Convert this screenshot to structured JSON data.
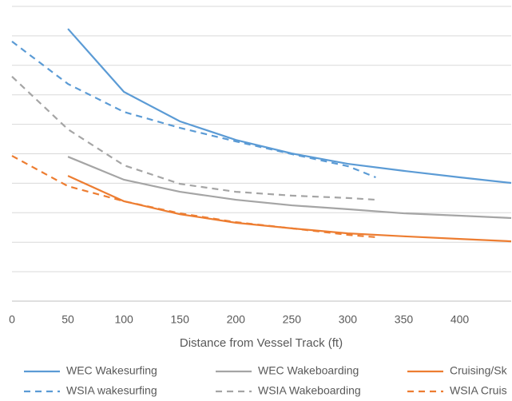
{
  "chart_data": {
    "type": "line",
    "x_label": "Distance from Vessel Track (ft)",
    "xlim": [
      0,
      446
    ],
    "xticks": [
      0,
      50,
      100,
      150,
      200,
      250,
      300,
      350,
      400
    ],
    "ylim": [
      0,
      10
    ],
    "yticks": [
      1,
      2,
      3,
      4,
      5,
      6,
      7,
      8,
      9,
      10
    ],
    "grid": true,
    "series": [
      {
        "name": "WEC Wakesurfing",
        "color": "#5b9bd5",
        "dashed": false,
        "x": [
          50,
          100,
          150,
          200,
          250,
          300,
          350,
          400,
          446
        ],
        "values": [
          9.24,
          7.1,
          6.1,
          5.47,
          5.01,
          4.66,
          4.42,
          4.2,
          4.01
        ]
      },
      {
        "name": "WEC Wakeboarding",
        "color": "#a5a5a5",
        "dashed": false,
        "x": [
          50,
          100,
          150,
          200,
          250,
          300,
          350,
          400,
          446
        ],
        "values": [
          4.9,
          4.12,
          3.71,
          3.44,
          3.25,
          3.12,
          2.98,
          2.9,
          2.82
        ]
      },
      {
        "name": "Cruising/Sk",
        "color": "#ed7d31",
        "dashed": false,
        "x": [
          50,
          100,
          150,
          200,
          250,
          300,
          350,
          400,
          446
        ],
        "values": [
          4.25,
          3.39,
          2.95,
          2.66,
          2.47,
          2.3,
          2.2,
          2.11,
          2.03
        ]
      },
      {
        "name": "WSIA wakesurfing",
        "color": "#5b9bd5",
        "dashed": true,
        "x": [
          0,
          50,
          100,
          150,
          200,
          250,
          300,
          325
        ],
        "values": [
          8.81,
          7.37,
          6.42,
          5.88,
          5.42,
          4.99,
          4.58,
          4.2
        ]
      },
      {
        "name": "WSIA Wakeboarding",
        "color": "#a5a5a5",
        "dashed": true,
        "x": [
          0,
          50,
          100,
          150,
          200,
          250,
          300,
          325
        ],
        "values": [
          7.62,
          5.83,
          4.61,
          3.98,
          3.71,
          3.58,
          3.5,
          3.44
        ]
      },
      {
        "name": "WSIA Cruis",
        "color": "#ed7d31",
        "dashed": true,
        "x": [
          0,
          50,
          100,
          150,
          200,
          250,
          300,
          325
        ],
        "values": [
          4.93,
          3.9,
          3.39,
          2.98,
          2.68,
          2.47,
          2.25,
          2.17
        ]
      }
    ]
  }
}
